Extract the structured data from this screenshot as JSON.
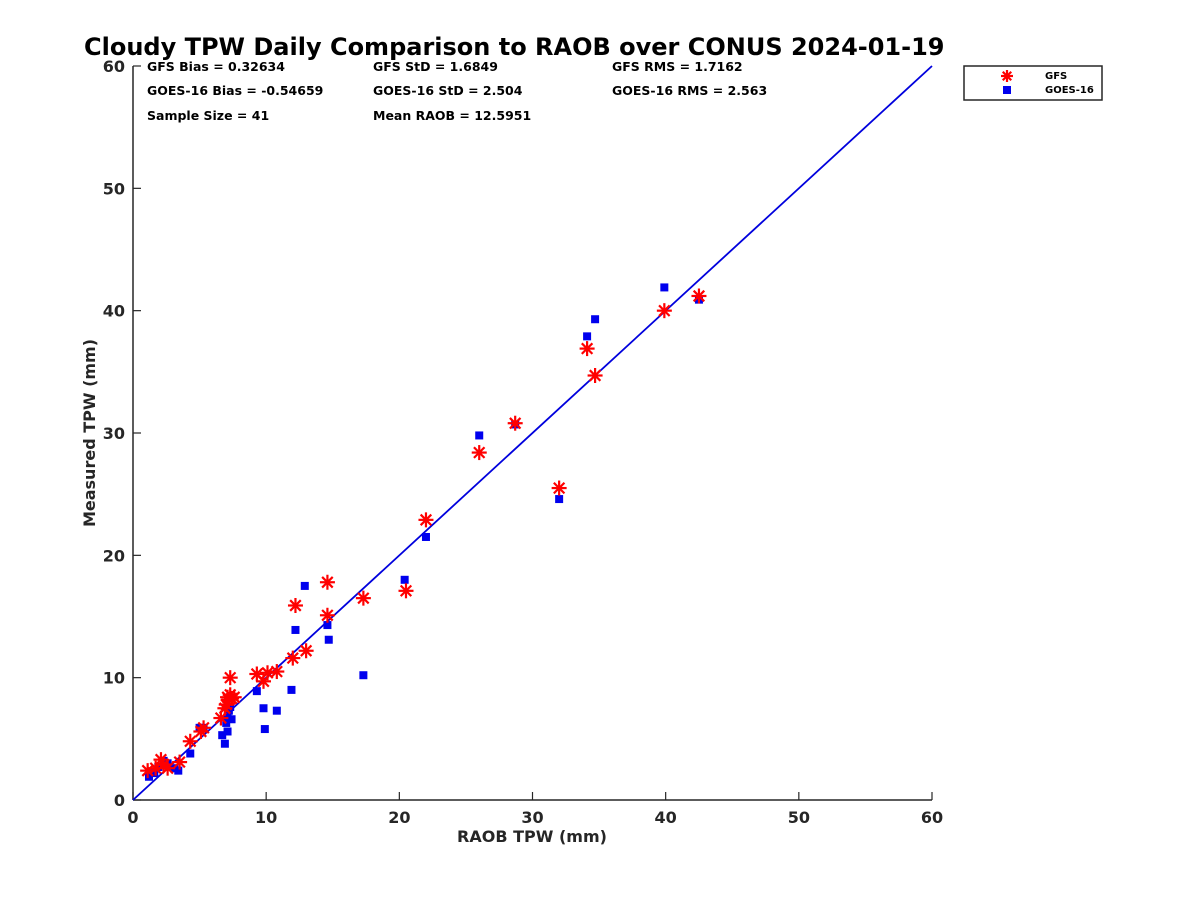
{
  "chart_data": {
    "type": "scatter",
    "title": "Cloudy TPW Daily Comparison to RAOB over CONUS 2024-01-19",
    "xlabel": "RAOB TPW (mm)",
    "ylabel": "Measured TPW (mm)",
    "xlim": [
      0,
      60
    ],
    "ylim": [
      0,
      60
    ],
    "xticks": [
      "0",
      "10",
      "20",
      "30",
      "40",
      "50",
      "60"
    ],
    "yticks": [
      "0",
      "10",
      "20",
      "30",
      "40",
      "50",
      "60"
    ],
    "grid": false,
    "legend_placement": "outside-top-right",
    "reference_line": {
      "x": [
        0,
        60
      ],
      "y": [
        0,
        60
      ],
      "color": "#0000dd"
    },
    "stats": [
      "GFS Bias = 0.32634",
      "GFS StD = 1.6849",
      "GFS RMS = 1.7162",
      "GOES-16 Bias = -0.54659",
      "GOES-16 StD = 2.504",
      "GOES-16 RMS = 2.563",
      "Sample Size = 41",
      "Mean RAOB = 12.5951"
    ],
    "series": [
      {
        "name": "GFS",
        "marker": "asterisk",
        "color": "#ff0000",
        "x": [
          1.1,
          1.7,
          2.1,
          2.3,
          2.6,
          3.5,
          4.3,
          5.1,
          5.3,
          6.6,
          6.9,
          7.0,
          7.1,
          7.2,
          7.3,
          7.3,
          7.4,
          7.6,
          9.3,
          9.8,
          10.1,
          10.8,
          12.0,
          12.2,
          13.0,
          14.6,
          14.6,
          17.3,
          20.5,
          22.0,
          26.0,
          28.7,
          32.0,
          34.1,
          34.7,
          39.9,
          42.5
        ],
        "y": [
          2.4,
          2.6,
          3.3,
          2.9,
          2.6,
          3.1,
          4.8,
          5.6,
          5.9,
          6.7,
          7.5,
          7.8,
          8.4,
          8.2,
          8.6,
          10.0,
          8.3,
          8.4,
          10.3,
          9.7,
          10.4,
          10.5,
          11.6,
          15.9,
          12.2,
          17.8,
          15.1,
          16.5,
          17.1,
          22.9,
          28.4,
          30.8,
          25.5,
          36.9,
          34.7,
          40.0,
          41.2
        ]
      },
      {
        "name": "GOES-16",
        "marker": "square",
        "color": "#0000ee",
        "x": [
          1.2,
          1.6,
          1.9,
          2.3,
          2.6,
          3.1,
          3.4,
          4.3,
          5.0,
          5.3,
          6.7,
          6.9,
          7.0,
          7.1,
          7.1,
          7.2,
          7.3,
          7.4,
          9.3,
          9.8,
          9.9,
          10.8,
          11.9,
          12.2,
          12.9,
          14.6,
          14.7,
          17.3,
          20.4,
          22.0,
          26.0,
          28.7,
          32.0,
          34.1,
          34.7,
          39.9,
          42.5
        ],
        "y": [
          1.9,
          2.2,
          2.7,
          3.2,
          3.0,
          2.6,
          2.4,
          3.8,
          5.9,
          5.9,
          5.3,
          4.6,
          6.3,
          5.6,
          6.8,
          7.3,
          7.6,
          6.6,
          8.9,
          7.5,
          5.8,
          7.3,
          9.0,
          13.9,
          17.5,
          14.3,
          13.1,
          10.2,
          18.0,
          21.5,
          29.8,
          30.7,
          24.6,
          37.9,
          39.3,
          41.9,
          40.9
        ]
      }
    ]
  }
}
